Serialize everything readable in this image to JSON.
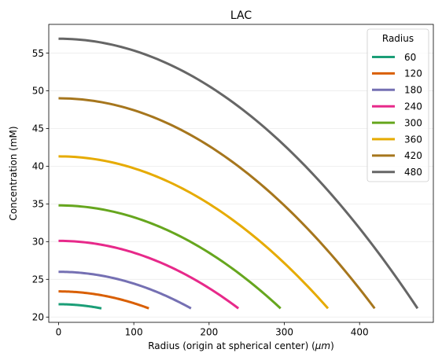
{
  "chart_data": {
    "type": "line",
    "title": "LAC",
    "xlabel_prefix": "Radius (origin at spherical center) (",
    "xlabel_unit": "μm",
    "xlabel_suffix": ")",
    "ylabel": "Concentration (mM)",
    "xlim": [
      -13,
      498
    ],
    "ylim": [
      19.3,
      58.8
    ],
    "xticks": [
      0,
      100,
      200,
      300,
      400
    ],
    "yticks": [
      20,
      25,
      30,
      35,
      40,
      45,
      50,
      55
    ],
    "grid": "horizontal, light",
    "legend": {
      "title": "Radius",
      "position": "top-right"
    },
    "series": [
      {
        "name": "60",
        "color": "#1b9e77",
        "r_max": 57,
        "c_center": 21.7,
        "c_edge": 21.15
      },
      {
        "name": "120",
        "color": "#d95f02",
        "r_max": 120,
        "c_center": 23.4,
        "c_edge": 21.15
      },
      {
        "name": "180",
        "color": "#7570b3",
        "r_max": 176,
        "c_center": 26.0,
        "c_edge": 21.15
      },
      {
        "name": "240",
        "color": "#e7298a",
        "r_max": 239,
        "c_center": 30.1,
        "c_edge": 21.15
      },
      {
        "name": "300",
        "color": "#66a61e",
        "r_max": 295,
        "c_center": 34.8,
        "c_edge": 21.15
      },
      {
        "name": "360",
        "color": "#e6ab02",
        "r_max": 358,
        "c_center": 41.3,
        "c_edge": 21.15
      },
      {
        "name": "420",
        "color": "#a6761d",
        "r_max": 420,
        "c_center": 49.0,
        "c_edge": 21.15
      },
      {
        "name": "480",
        "color": "#666666",
        "r_max": 477,
        "c_center": 56.9,
        "c_edge": 21.15
      }
    ]
  }
}
